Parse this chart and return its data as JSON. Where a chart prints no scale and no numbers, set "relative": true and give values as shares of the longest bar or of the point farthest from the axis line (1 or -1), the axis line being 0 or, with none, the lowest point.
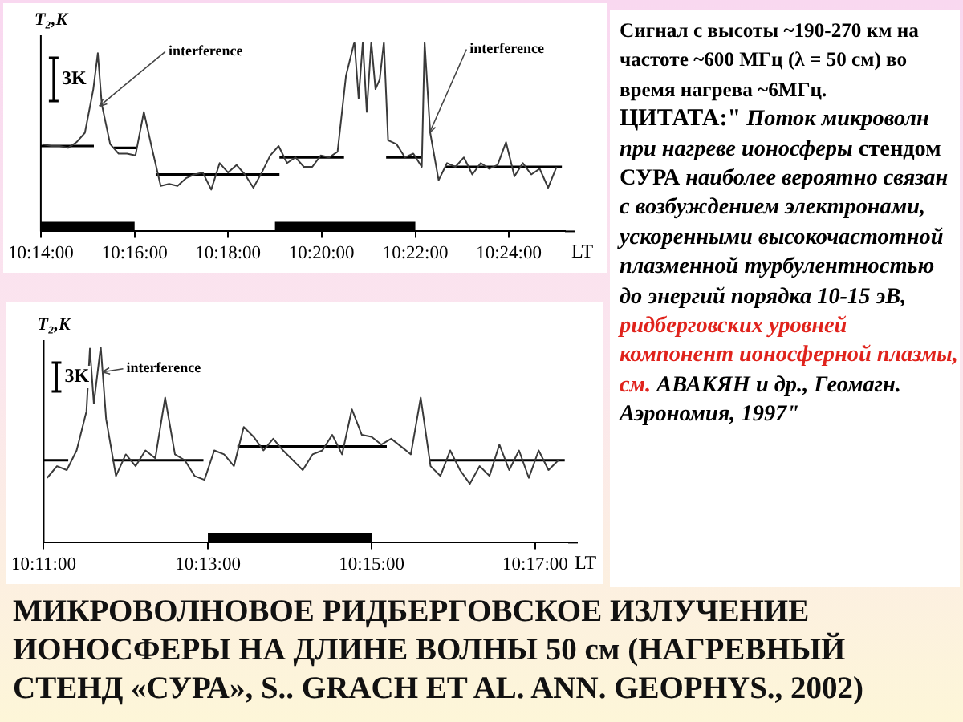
{
  "chart_data": [
    {
      "type": "line",
      "relative": true,
      "title": "МИКРОВОЛНОВОЕ РИДБЕРГОВСКОЕ ИЗЛУЧЕНИЕ ИОНОСФЕРЫ НА ДЛИНЕ ВОЛНЫ 50 см (НАГРЕВНЫЙ СТЕНД «СУРА», S.. GRACH  ET  AL.   ANN. GEOPHYS., 2002)",
      "xlabel": "LT",
      "ylabel": "T₂,K",
      "xlim": [
        10.2333,
        10.42
      ],
      "xticks": [
        {
          "value": 10.2333,
          "label": "10:14:00"
        },
        {
          "value": 10.2667,
          "label": "10:16:00"
        },
        {
          "value": 10.3,
          "label": "10:18:00"
        },
        {
          "value": 10.3333,
          "label": "10:20:00"
        },
        {
          "value": 10.3667,
          "label": "10:22:00"
        },
        {
          "value": 10.4,
          "label": "10:24:00"
        }
      ],
      "series": [
        {
          "type": "line",
          "color": "#3a3a3a",
          "x": [
            10.234,
            10.237,
            10.24,
            10.243,
            10.246,
            10.249,
            10.252,
            10.2536,
            10.255,
            10.258,
            10.261,
            10.264,
            10.267,
            10.27,
            10.273,
            10.276,
            10.279,
            10.282,
            10.285,
            10.288,
            10.291,
            10.294,
            10.297,
            10.3,
            10.303,
            10.306,
            10.309,
            10.312,
            10.315,
            10.318,
            10.321,
            10.324,
            10.327,
            10.33,
            10.333,
            10.336,
            10.339,
            10.342,
            10.345,
            10.3465,
            10.348,
            10.3494,
            10.351,
            10.3525,
            10.354,
            10.3555,
            10.357,
            10.36,
            10.363,
            10.366,
            10.369,
            10.37,
            10.372,
            10.375,
            10.378,
            10.381,
            10.384,
            10.387,
            10.39,
            10.393,
            10.396,
            10.399,
            10.402,
            10.405,
            10.408,
            10.411,
            10.414,
            10.417
          ],
          "values": [
            0.46,
            0.45,
            0.45,
            0.44,
            0.47,
            0.52,
            0.75,
            0.94,
            0.67,
            0.46,
            0.41,
            0.41,
            0.4,
            0.63,
            0.43,
            0.24,
            0.25,
            0.24,
            0.28,
            0.3,
            0.31,
            0.22,
            0.36,
            0.31,
            0.35,
            0.3,
            0.23,
            0.31,
            0.4,
            0.45,
            0.36,
            0.39,
            0.34,
            0.34,
            0.4,
            0.39,
            0.42,
            0.82,
            1,
            0.7,
            1,
            0.63,
            1,
            0.75,
            0.8,
            1,
            0.48,
            0.46,
            0.39,
            0.41,
            0.34,
            1,
            0.52,
            0.27,
            0.36,
            0.34,
            0.39,
            0.3,
            0.36,
            0.33,
            0.35,
            0.47,
            0.29,
            0.36,
            0.3,
            0.33,
            0.23,
            0.34
          ]
        },
        {
          "type": "line",
          "color": "#000000",
          "x": [
            10.2333,
            10.2522
          ],
          "values": [
            0.45,
            0.45
          ]
        },
        {
          "type": "line",
          "color": "#000000",
          "x": [
            10.2593,
            10.2675
          ],
          "values": [
            0.44,
            0.44
          ]
        },
        {
          "type": "line",
          "color": "#000000",
          "x": [
            10.2742,
            10.3183
          ],
          "values": [
            0.3,
            0.3
          ]
        },
        {
          "type": "line",
          "color": "#000000",
          "x": [
            10.3183,
            10.3413
          ],
          "values": [
            0.39,
            0.39
          ]
        },
        {
          "type": "line",
          "color": "#000000",
          "x": [
            10.3563,
            10.3686
          ],
          "values": [
            0.39,
            0.39
          ]
        },
        {
          "type": "line",
          "color": "#000000",
          "x": [
            10.3774,
            10.4189
          ],
          "values": [
            0.34,
            0.34
          ]
        }
      ],
      "bands": [
        {
          "axis": "x",
          "from": 10.2333,
          "to": 10.2667,
          "color": "#000000"
        },
        {
          "axis": "x",
          "from": 10.3167,
          "to": 10.3667,
          "color": "#000000"
        }
      ],
      "annotations": [
        {
          "text": "interference",
          "x": 10.2536,
          "y": 0.66
        },
        {
          "text": "interference",
          "x": 10.3712,
          "y": 0.52
        },
        "3K",
        "Сигнал с высоты ~190-270 км на частоте ~600 МГц (λ = 50 см) во время нагрева  ~6МГц.",
        "ЦИТАТА:\"",
        "Поток микроволн при нагреве ионосферы",
        "стендом СУРА",
        "наиболее вероятно связан с возбуждением электронами, ускоренными высокочастотной плазменной турбулентностью до энергий порядка 10-15 эВ,",
        "ридберговских уровней компонент ионосферной плазмы, см.",
        "АВАКЯН и др., Геомагн. Аэрономия, 1997\""
      ]
    },
    {
      "type": "line",
      "relative": true,
      "xlabel": "LT",
      "ylabel": "T₂,K",
      "xlim": [
        10.1833,
        10.29
      ],
      "xticks": [
        {
          "value": 10.1833,
          "label": "10:11:00"
        },
        {
          "value": 10.2167,
          "label": "10:13:00"
        },
        {
          "value": 10.25,
          "label": "10:15:00"
        },
        {
          "value": 10.2833,
          "label": "10:17:00"
        }
      ],
      "series": [
        {
          "type": "line",
          "color": "#3a3a3a",
          "x": [
            10.184,
            10.186,
            10.188,
            10.19,
            10.192,
            10.1927,
            10.1935,
            10.1949,
            10.196,
            10.198,
            10.2,
            10.202,
            10.204,
            10.206,
            10.208,
            10.21,
            10.212,
            10.214,
            10.216,
            10.218,
            10.22,
            10.222,
            10.224,
            10.226,
            10.228,
            10.23,
            10.232,
            10.234,
            10.236,
            10.238,
            10.24,
            10.242,
            10.244,
            10.246,
            10.248,
            10.25,
            10.252,
            10.254,
            10.256,
            10.258,
            10.26,
            10.262,
            10.264,
            10.266,
            10.268,
            10.27,
            10.272,
            10.274,
            10.276,
            10.278,
            10.28,
            10.282,
            10.284,
            10.286,
            10.288
          ],
          "values": [
            0.33,
            0.39,
            0.37,
            0.47,
            0.67,
            0.99,
            0.71,
            1,
            0.63,
            0.34,
            0.45,
            0.39,
            0.47,
            0.43,
            0.74,
            0.45,
            0.42,
            0.34,
            0.32,
            0.47,
            0.45,
            0.39,
            0.59,
            0.54,
            0.47,
            0.53,
            0.47,
            0.42,
            0.37,
            0.45,
            0.47,
            0.55,
            0.45,
            0.68,
            0.55,
            0.54,
            0.5,
            0.53,
            0.49,
            0.45,
            0.74,
            0.39,
            0.34,
            0.47,
            0.37,
            0.3,
            0.39,
            0.34,
            0.5,
            0.37,
            0.47,
            0.33,
            0.47,
            0.37,
            0.42
          ]
        },
        {
          "type": "line",
          "color": "#000000",
          "x": [
            10.1833,
            10.1883
          ],
          "values": [
            0.42,
            0.42
          ]
        },
        {
          "type": "line",
          "color": "#000000",
          "x": [
            10.1973,
            10.2158
          ],
          "values": [
            0.42,
            0.42
          ]
        },
        {
          "type": "line",
          "color": "#000000",
          "x": [
            10.2227,
            10.2531
          ],
          "values": [
            0.49,
            0.49
          ]
        },
        {
          "type": "line",
          "color": "#000000",
          "x": [
            10.2618,
            10.2893
          ],
          "values": [
            0.42,
            0.42
          ]
        }
      ],
      "bands": [
        {
          "axis": "x",
          "from": 10.2167,
          "to": 10.25,
          "color": "#000000"
        }
      ],
      "annotations": [
        {
          "text": "interference",
          "x": 10.1949,
          "y": 0.87
        },
        "3K"
      ]
    }
  ]
}
